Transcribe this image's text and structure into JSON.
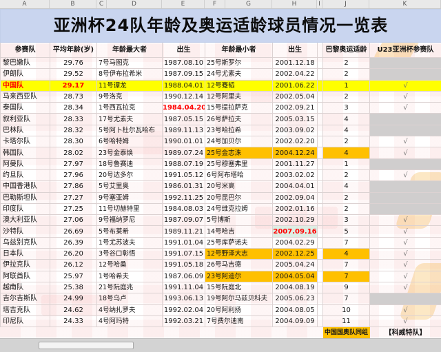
{
  "title": "亚洲杯24队年龄及奥运适龄球员情况一览表",
  "column_letters": [
    "A",
    "B",
    "C",
    "D",
    "E",
    "F",
    "G",
    "H",
    "I",
    "J",
    "K"
  ],
  "header": {
    "team": "参赛队",
    "avg_age": "平均年龄(岁)",
    "oldest": "年龄最大者",
    "birth1": "出生",
    "youngest": "年龄最小者",
    "birth2": "出生",
    "paris": "巴黎奥运适龄",
    "u23": "U23亚洲杯参赛队"
  },
  "check_mark": "√",
  "rows": [
    {
      "team": "黎巴嫩队",
      "avg": "29.76",
      "oldest": "7号马图克",
      "birth1": "1987.08.10",
      "youngest": "25号斯罗尔",
      "birth2": "2001.12.18",
      "paris": "2",
      "u23": "gray"
    },
    {
      "team": "伊朗队",
      "avg": "29.52",
      "oldest": "8号伊布拉希米",
      "birth1": "1987.09.15",
      "youngest": "24号尤素夫",
      "birth2": "2002.04.22",
      "paris": "2",
      "u23": "gray"
    },
    {
      "team": "中国队",
      "avg": "29.17",
      "oldest": "11号谭龙",
      "birth1": "1988.04.01",
      "youngest": "12号蹇韬",
      "birth2": "2001.06.22",
      "paris": "1",
      "u23": "check",
      "highlight": "yellow",
      "team_red": true,
      "avg_red": true
    },
    {
      "team": "马来西亚队",
      "avg": "28.73",
      "oldest": "9号洛克",
      "birth1": "1990.12.14",
      "youngest": "12号阿里夫",
      "birth2": "2002.05.04",
      "paris": "2",
      "u23": "check"
    },
    {
      "team": "泰国队",
      "avg": "28.34",
      "oldest": "1号西瓦拉克",
      "birth1": "1984.04.20",
      "youngest": "15号提拉萨克",
      "birth2": "2002.09.21",
      "paris": "3",
      "u23": "check",
      "birth1_red": true
    },
    {
      "team": "叙利亚队",
      "avg": "28.33",
      "oldest": "17号尤素夫",
      "birth1": "1987.05.15",
      "youngest": "26号萨拉夫",
      "birth2": "2005.03.15",
      "paris": "4",
      "u23": "gray"
    },
    {
      "team": "巴林队",
      "avg": "28.32",
      "oldest": "5号阿卜杜尔瓦哈布",
      "birth1": "1989.11.13",
      "youngest": "23号哈拉希",
      "birth2": "2003.09.02",
      "paris": "4",
      "u23": "gray"
    },
    {
      "team": "卡塔尔队",
      "avg": "28.30",
      "oldest": "6号哈特姆",
      "birth1": "1990.01.01",
      "youngest": "24号加贝尔",
      "birth2": "2002.02.20",
      "paris": "2",
      "u23": "check"
    },
    {
      "team": "韩国队",
      "avg": "28.02",
      "oldest": "23号金泰焕",
      "birth1": "1989.07.24",
      "youngest": "25号金志洙",
      "birth2": "2004.12.24",
      "paris": "4",
      "u23": "check",
      "youngest_highlight": true
    },
    {
      "team": "阿曼队",
      "avg": "27.97",
      "oldest": "18号鲁赛迪",
      "birth1": "1988.07.19",
      "youngest": "25号穆塞弗里",
      "birth2": "2001.11.27",
      "paris": "1",
      "u23": "gray"
    },
    {
      "team": "约旦队",
      "avg": "27.96",
      "oldest": "20号达多尔",
      "birth1": "1991.05.12",
      "youngest": "6号阿布塔哈",
      "birth2": "2003.02.02",
      "paris": "2",
      "u23": "check"
    },
    {
      "team": "中国香港队",
      "avg": "27.86",
      "oldest": "5号艾里奥",
      "birth1": "1986.01.31",
      "youngest": "20号米高",
      "birth2": "2004.04.01",
      "paris": "4",
      "u23": "gray"
    },
    {
      "team": "巴勒斯坦队",
      "avg": "27.27",
      "oldest": "9号塞亚姆",
      "birth1": "1992.11.25",
      "youngest": "20号昆巴尔",
      "birth2": "2002.09.04",
      "paris": "2",
      "u23": "gray"
    },
    {
      "team": "印度队",
      "avg": "27.25",
      "oldest": "11号切赫特里",
      "birth1": "1984.08.03",
      "youngest": "24号维克拉姆",
      "birth2": "2002.01.16",
      "paris": "2",
      "u23": "gray"
    },
    {
      "team": "澳大利亚队",
      "avg": "27.06",
      "oldest": "9号福纳罗尼",
      "birth1": "1987.09.07",
      "youngest": "5号博斯",
      "birth2": "2002.10.29",
      "paris": "3",
      "u23": "check"
    },
    {
      "team": "沙特队",
      "avg": "26.69",
      "oldest": "5号布莱希",
      "birth1": "1989.11.21",
      "youngest": "14号哈吉",
      "birth2": "2007.09.16",
      "paris": "5",
      "u23": "check",
      "birth2_red": true,
      "birth2_green": true
    },
    {
      "team": "乌兹别克队",
      "avg": "26.39",
      "oldest": "1号尤苏波夫",
      "birth1": "1991.01.04",
      "youngest": "25号库萨诺夫",
      "birth2": "2004.02.29",
      "paris": "7",
      "u23": "check"
    },
    {
      "team": "日本队",
      "avg": "26.20",
      "oldest": "3号谷口彰悟",
      "birth1": "1991.07.15",
      "youngest": "12号野泽大志",
      "birth2": "2002.12.25",
      "paris": "4",
      "u23": "check",
      "youngest_highlight": true
    },
    {
      "team": "伊拉克队",
      "avg": "26.12",
      "oldest": "12号哈桑",
      "birth1": "1991.05.18",
      "youngest": "26号马吉德",
      "birth2": "2005.04.24",
      "paris": "7",
      "u23": "check"
    },
    {
      "team": "阿联酋队",
      "avg": "25.97",
      "oldest": "1号哈希夫",
      "birth1": "1987.06.09",
      "youngest": "23号阿迪尔",
      "birth2": "2004.05.04",
      "paris": "7",
      "u23": "check",
      "youngest_highlight": true
    },
    {
      "team": "越南队",
      "avg": "25.38",
      "oldest": "21号阮庭兆",
      "birth1": "1991.11.04",
      "youngest": "15号阮庭北",
      "birth2": "2004.08.19",
      "paris": "9",
      "u23": "check"
    },
    {
      "team": "吉尔吉斯队",
      "avg": "24.99",
      "oldest": "18号乌卢",
      "birth1": "1993.06.13",
      "youngest": "19号阿尔马兹贝科夫",
      "birth2": "2005.06.23",
      "paris": "7",
      "u23": "gray"
    },
    {
      "team": "塔吉克队",
      "avg": "24.62",
      "oldest": "4号纳扎罗夫",
      "birth1": "1992.02.04",
      "youngest": "20号阿利扬",
      "birth2": "2004.08.05",
      "paris": "10",
      "u23": "check"
    },
    {
      "team": "印尼队",
      "avg": "24.33",
      "oldest": "4号阿玛特",
      "birth1": "1992.03.21",
      "youngest": "7号费尔迪南",
      "birth2": "2004.09.09",
      "paris": "11",
      "u23": "check"
    }
  ],
  "footer": {
    "group_note": "中国国奥队同组",
    "kuwait": "【科威特队】"
  },
  "colors": {
    "highlight_yellow": "#ffff00",
    "highlight_orange": "#ffc000",
    "alert_red": "#ff0000",
    "not_qualified_gray": "#d0cece",
    "saudi_date_green": "#ddeee4",
    "title_blue": "#c9d5ef"
  }
}
